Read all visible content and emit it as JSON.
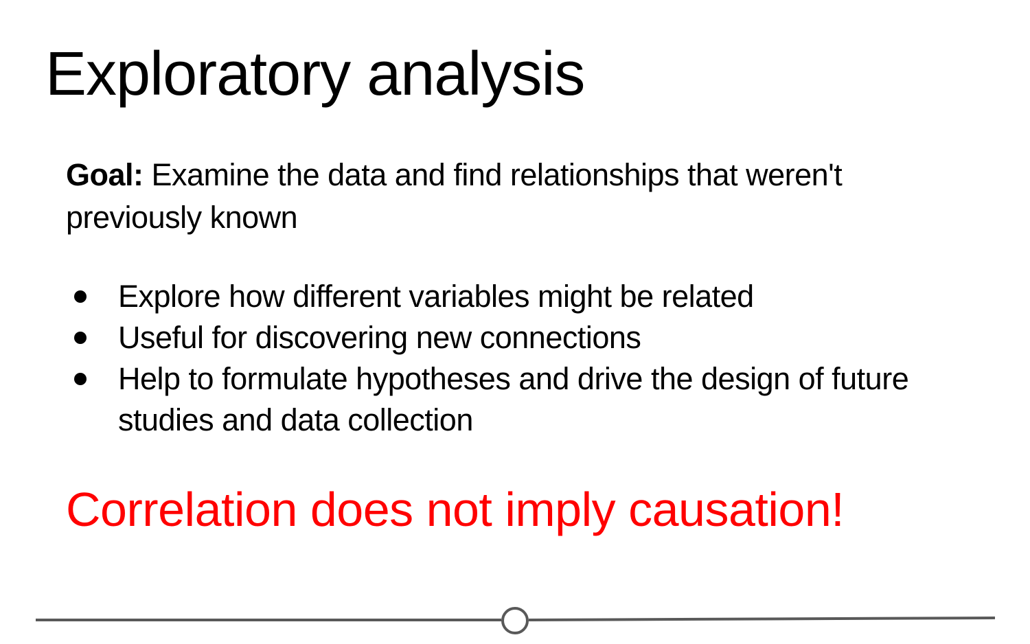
{
  "slide": {
    "title": "Exploratory analysis",
    "goal": {
      "label": "Goal:",
      "text": " Examine the data and find relationships that weren't previously known"
    },
    "bullets": [
      "Explore how different variables might be related",
      "Useful for discovering new connections",
      "Help to formulate hypotheses and drive the design of future studies and data collection"
    ],
    "callout": "Correlation does not imply causation!"
  },
  "colors": {
    "text": "#000000",
    "callout": "#ff0000",
    "footer_line": "#595959"
  }
}
